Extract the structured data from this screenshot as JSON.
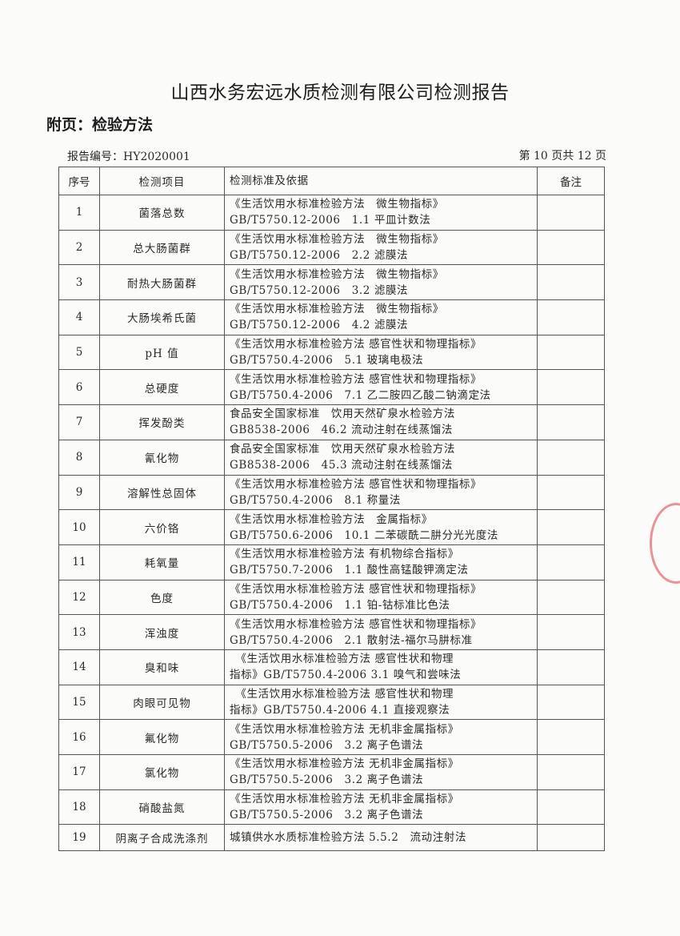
{
  "header": {
    "title": "山西水务宏远水质检测有限公司检测报告",
    "subtitle": "附页：检验方法",
    "report_no": "报告编号：HY2020001",
    "page_info": "第 10 页共 12 页"
  },
  "table": {
    "columns": [
      "序号",
      "检测项目",
      "检测标准及依据",
      "备注"
    ],
    "rows": [
      {
        "no": "1",
        "item": "菌落总数",
        "l1": "《生活饮用水标准检验方法　微生物指标》",
        "l2": "GB/T5750.12-2006　1.1 平皿计数法",
        "note": ""
      },
      {
        "no": "2",
        "item": "总大肠菌群",
        "l1": "《生活饮用水标准检验方法　微生物指标》",
        "l2": "GB/T5750.12-2006　2.2 滤膜法",
        "note": ""
      },
      {
        "no": "3",
        "item": "耐热大肠菌群",
        "l1": "《生活饮用水标准检验方法　微生物指标》",
        "l2": "GB/T5750.12-2006　3.2 滤膜法",
        "note": ""
      },
      {
        "no": "4",
        "item": "大肠埃希氏菌",
        "l1": "《生活饮用水标准检验方法　微生物指标》",
        "l2": "GB/T5750.12-2006　4.2 滤膜法",
        "note": ""
      },
      {
        "no": "5",
        "item": "pH 值",
        "l1": "《生活饮用水标准检验方法 感官性状和物理指标》",
        "l2": "GB/T5750.4-2006　5.1 玻璃电极法",
        "note": ""
      },
      {
        "no": "6",
        "item": "总硬度",
        "l1": "《生活饮用水标准检验方法 感官性状和物理指标》",
        "l2": "GB/T5750.4-2006　7.1 乙二胺四乙酸二钠滴定法",
        "note": ""
      },
      {
        "no": "7",
        "item": "挥发酚类",
        "l1": "食品安全国家标准　饮用天然矿泉水检验方法",
        "l2": "GB8538-2006　46.2 流动注射在线蒸馏法",
        "note": ""
      },
      {
        "no": "8",
        "item": "氰化物",
        "l1": "食品安全国家标准　饮用天然矿泉水检验方法",
        "l2": "GB8538-2006　45.3 流动注射在线蒸馏法",
        "note": ""
      },
      {
        "no": "9",
        "item": "溶解性总固体",
        "l1": "《生活饮用水标准检验方法 感官性状和物理指标》",
        "l2": "GB/T5750.4-2006　8.1 称量法",
        "note": ""
      },
      {
        "no": "10",
        "item": "六价铬",
        "l1": "《生活饮用水标准检验方法　金属指标》",
        "l2": "GB/T5750.6-2006　10.1 二苯碳酰二肼分光光度法",
        "note": ""
      },
      {
        "no": "11",
        "item": "耗氧量",
        "l1": "《生活饮用水标准检验方法 有机物综合指标》",
        "l2": "GB/T5750.7-2006　1.1 酸性高锰酸钾滴定法",
        "note": ""
      },
      {
        "no": "12",
        "item": "色度",
        "l1": "《生活饮用水标准检验方法 感官性状和物理指标》",
        "l2": "GB/T5750.4-2006　1.1 铂-钴标准比色法",
        "note": ""
      },
      {
        "no": "13",
        "item": "浑浊度",
        "l1": "《生活饮用水标准检验方法 感官性状和物理指标》",
        "l2": "GB/T5750.4-2006　2.1 散射法-福尔马肼标准",
        "note": ""
      },
      {
        "no": "14",
        "item": "臭和味",
        "l1": "　《生活饮用水标准检验方法 感官性状和物理",
        "l2": "指标》GB/T5750.4-2006 3.1 嗅气和尝味法",
        "note": ""
      },
      {
        "no": "15",
        "item": "肉眼可见物",
        "l1": "　《生活饮用水标准检验方法 感官性状和物理",
        "l2": "指标》GB/T5750.4-2006 4.1 直接观察法",
        "note": ""
      },
      {
        "no": "16",
        "item": "氟化物",
        "l1": "《生活饮用水标准检验方法 无机非金属指标》",
        "l2": "GB/T5750.5-2006　3.2 离子色谱法",
        "note": ""
      },
      {
        "no": "17",
        "item": "氯化物",
        "l1": "《生活饮用水标准检验方法 无机非金属指标》",
        "l2": "GB/T5750.5-2006　3.2 离子色谱法",
        "note": ""
      },
      {
        "no": "18",
        "item": "硝酸盐氮",
        "l1": "《生活饮用水标准检验方法 无机非金属指标》",
        "l2": "GB/T5750.5-2006　3.2 离子色谱法",
        "note": ""
      },
      {
        "no": "19",
        "item": "阴离子合成洗涤剂",
        "l1": "城镇供水水质标准检验方法 5.5.2　流动注射法",
        "l2": "",
        "note": ""
      }
    ]
  },
  "colors": {
    "ink": "#2a2a2a",
    "stamp": "#dc3c46"
  }
}
